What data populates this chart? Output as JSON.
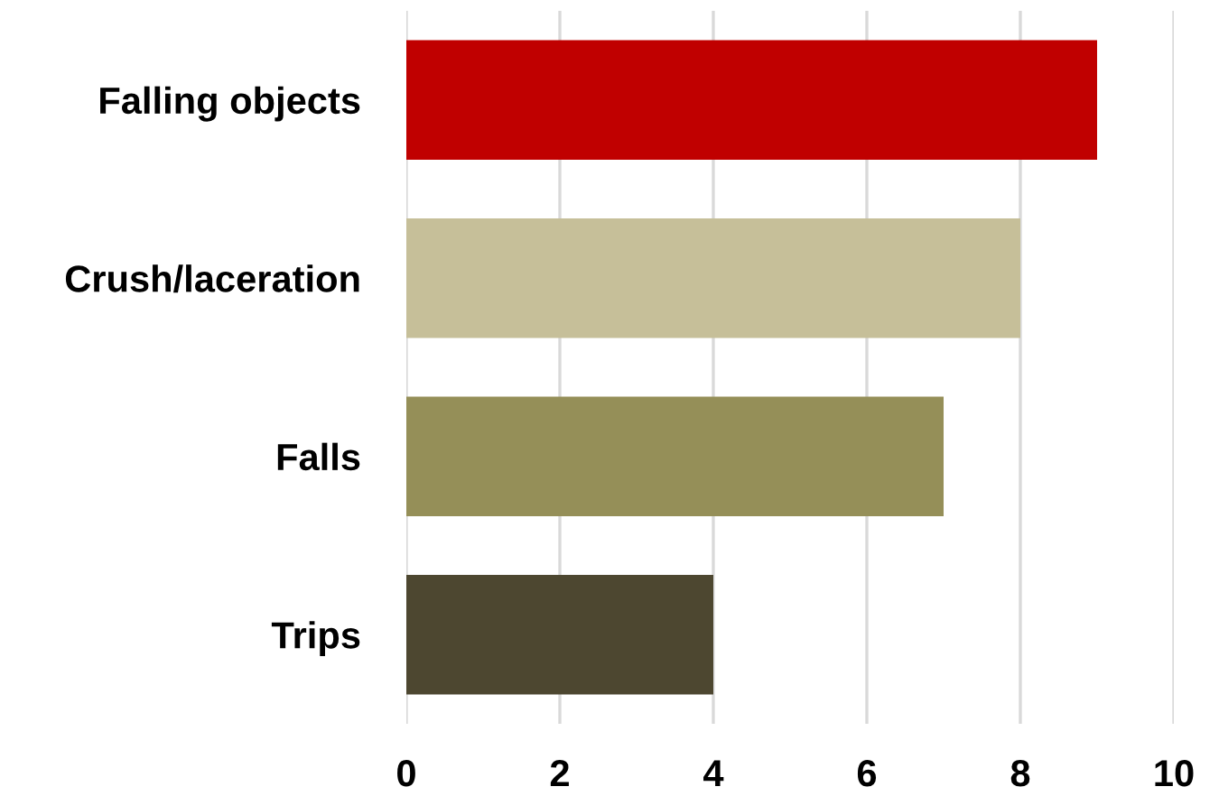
{
  "chart_data": {
    "type": "bar",
    "orientation": "horizontal",
    "categories": [
      "Falling objects",
      "Crush/laceration",
      "Falls",
      "Trips"
    ],
    "values": [
      9,
      8,
      7,
      4
    ],
    "colors": [
      "#c00000",
      "#c6bf99",
      "#958f58",
      "#4d4730"
    ],
    "xlim": [
      0,
      10
    ],
    "xticks": [
      0,
      2,
      4,
      6,
      8,
      10
    ],
    "grid": "x"
  }
}
